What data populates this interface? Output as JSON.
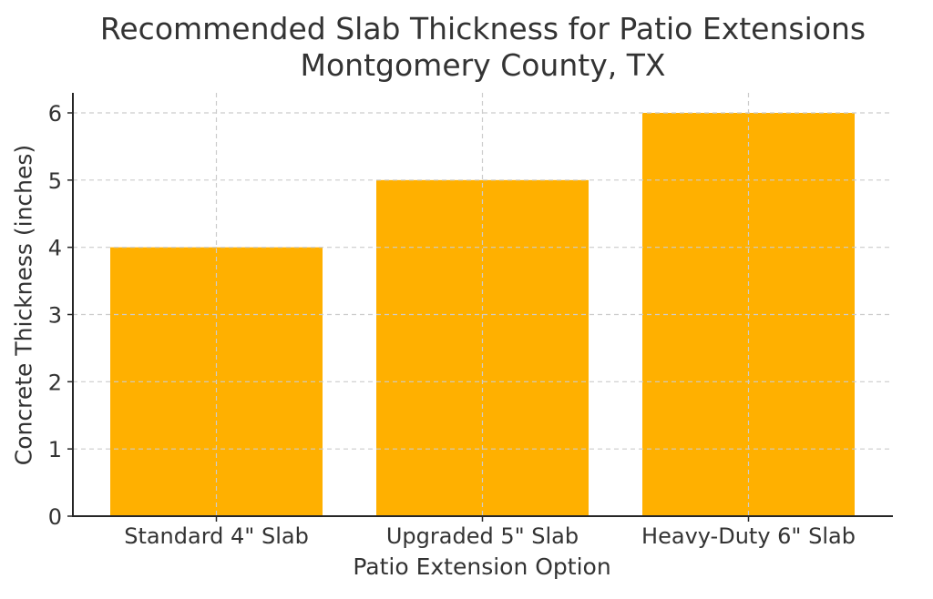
{
  "chart_data": {
    "type": "bar",
    "title": "Recommended Slab Thickness for Patio Extensions",
    "subtitle": "Montgomery County, TX",
    "xlabel": "Patio Extension Option",
    "ylabel": "Concrete Thickness (inches)",
    "categories": [
      "Standard 4\" Slab",
      "Upgraded 5\" Slab",
      "Heavy-Duty 6\" Slab"
    ],
    "values": [
      4,
      5,
      6
    ],
    "ylim": [
      0,
      6.3
    ],
    "yticks": [
      0,
      1,
      2,
      3,
      4,
      5,
      6
    ],
    "grid": true,
    "grid_style": "dashed",
    "legend": null,
    "bar_color": "#ffb000"
  },
  "colors": {
    "bar": "#ffb000",
    "axis": "#262626",
    "grid": "#cccccc",
    "text": "#333333"
  }
}
